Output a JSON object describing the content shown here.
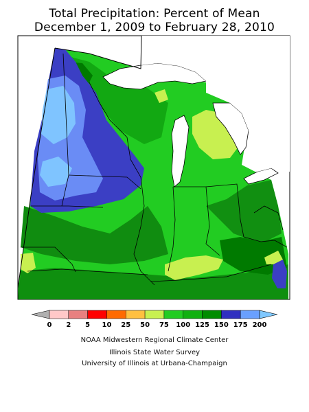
{
  "title": {
    "line1": "Total Precipitation: Percent of Mean",
    "line2": "December 1, 2009 to February 28, 2010"
  },
  "legend": {
    "labels": [
      "0",
      "2",
      "5",
      "10",
      "25",
      "50",
      "75",
      "100",
      "125",
      "150",
      "175",
      "200"
    ],
    "colors": [
      "#b0b0b0",
      "#ffc8c8",
      "#e88080",
      "#ff0000",
      "#ff6a00",
      "#ffc040",
      "#c8f050",
      "#22cc22",
      "#10b010",
      "#008c00",
      "#3030c0",
      "#6aa0ff",
      "#80c8ff"
    ]
  },
  "credits": {
    "line1": "NOAA Midwestern Regional Climate Center",
    "line2": "Illinois State Water Survey",
    "line3": "University of Illinois at Urbana-Champaign"
  }
}
